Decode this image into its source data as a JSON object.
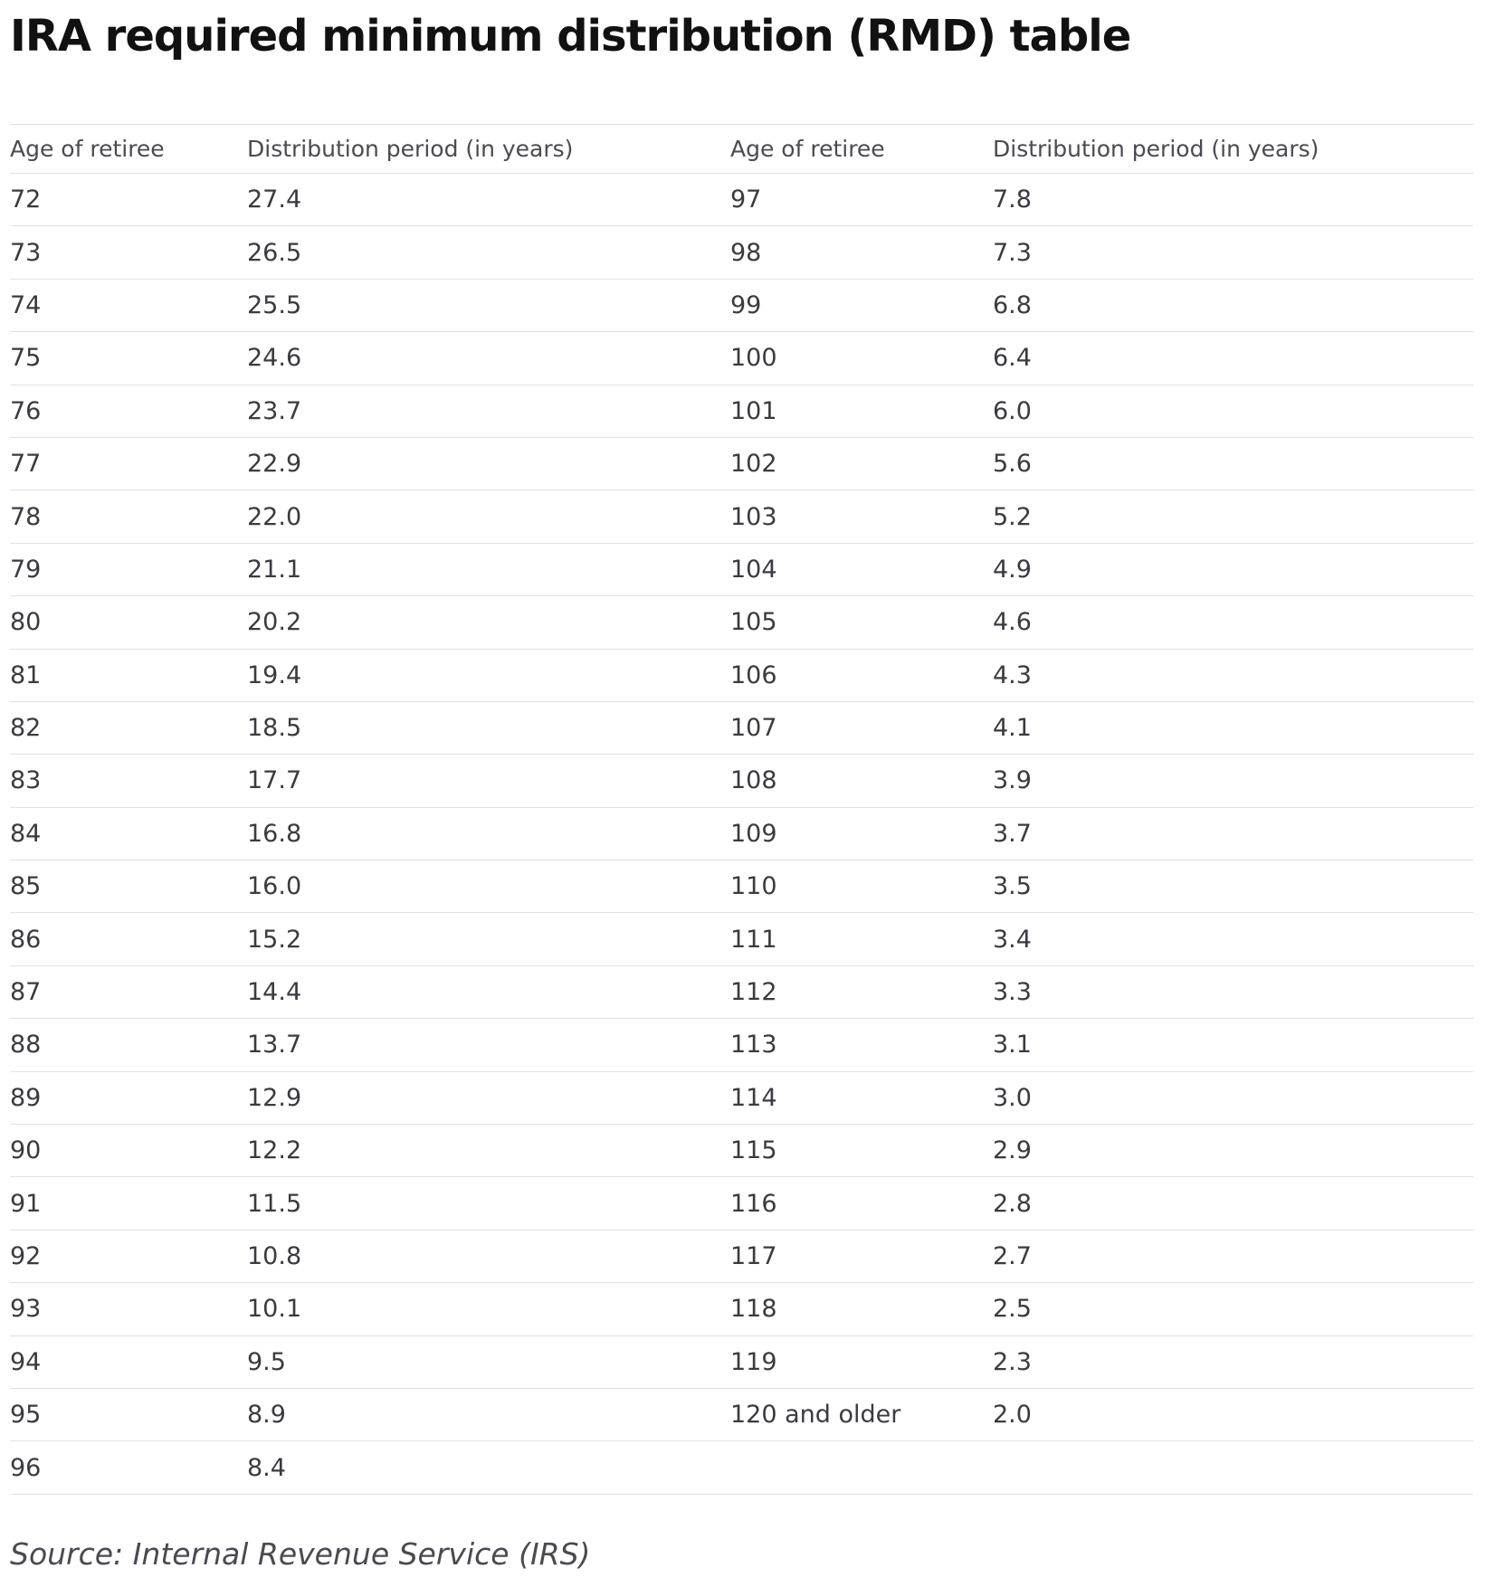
{
  "header": {
    "title": "IRA required minimum distribution (RMD) table"
  },
  "table": {
    "columns": [
      "Age of retiree",
      "Distribution period (in years)",
      "Age of retiree",
      "Distribution period (in years)"
    ],
    "rows": [
      [
        "72",
        "27.4",
        "97",
        "7.8"
      ],
      [
        "73",
        "26.5",
        "98",
        "7.3"
      ],
      [
        "74",
        "25.5",
        "99",
        "6.8"
      ],
      [
        "75",
        "24.6",
        "100",
        "6.4"
      ],
      [
        "76",
        "23.7",
        "101",
        "6.0"
      ],
      [
        "77",
        "22.9",
        "102",
        "5.6"
      ],
      [
        "78",
        "22.0",
        "103",
        "5.2"
      ],
      [
        "79",
        "21.1",
        "104",
        "4.9"
      ],
      [
        "80",
        "20.2",
        "105",
        "4.6"
      ],
      [
        "81",
        "19.4",
        "106",
        "4.3"
      ],
      [
        "82",
        "18.5",
        "107",
        "4.1"
      ],
      [
        "83",
        "17.7",
        "108",
        "3.9"
      ],
      [
        "84",
        "16.8",
        "109",
        "3.7"
      ],
      [
        "85",
        "16.0",
        "110",
        "3.5"
      ],
      [
        "86",
        "15.2",
        "111",
        "3.4"
      ],
      [
        "87",
        "14.4",
        "112",
        "3.3"
      ],
      [
        "88",
        "13.7",
        "113",
        "3.1"
      ],
      [
        "89",
        "12.9",
        "114",
        "3.0"
      ],
      [
        "90",
        "12.2",
        "115",
        "2.9"
      ],
      [
        "91",
        "11.5",
        "116",
        "2.8"
      ],
      [
        "92",
        "10.8",
        "117",
        "2.7"
      ],
      [
        "93",
        "10.1",
        "118",
        "2.5"
      ],
      [
        "94",
        "9.5",
        "119",
        "2.3"
      ],
      [
        "95",
        "8.9",
        "120 and older",
        "2.0"
      ],
      [
        "96",
        "8.4"
      ]
    ]
  },
  "source": "Source: Internal Revenue Service (IRS)"
}
